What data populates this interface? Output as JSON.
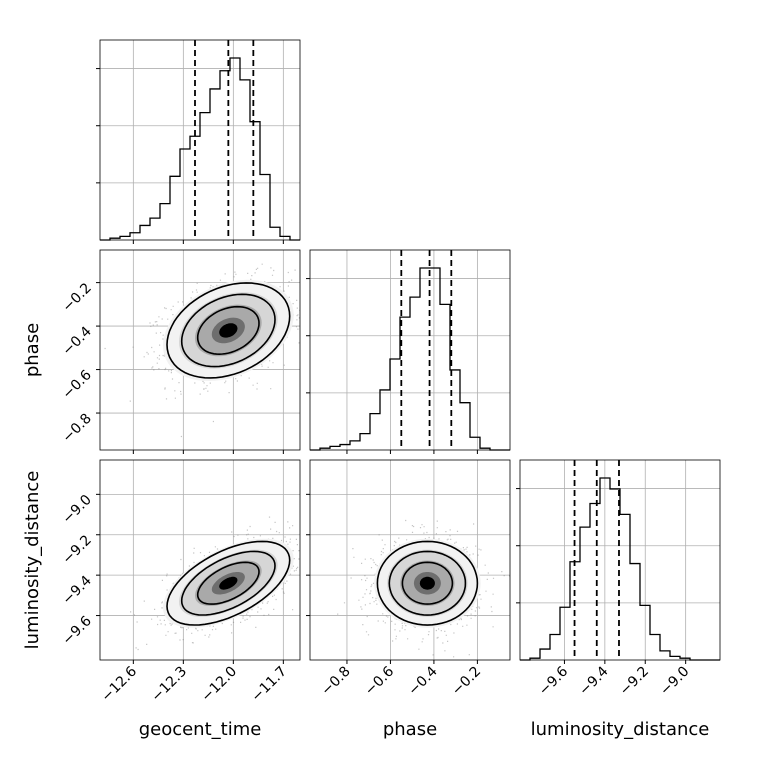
{
  "chart_data": {
    "type": "corner",
    "parameters": [
      "geocent_time",
      "phase",
      "luminosity_distance"
    ],
    "grid": true,
    "ranges": {
      "geocent_time": [
        -12.8,
        -11.6
      ],
      "phase": [
        -0.97,
        -0.05
      ],
      "luminosity_distance": [
        -9.82,
        -8.83
      ]
    },
    "ticks": {
      "geocent_time": {
        "values": [
          -12.6,
          -12.3,
          -12.0,
          -11.7
        ],
        "labels": [
          "−12.6",
          "−12.3",
          "−12.0",
          "−11.7"
        ]
      },
      "phase": {
        "values": [
          -0.8,
          -0.6,
          -0.4,
          -0.2
        ],
        "labels": [
          "−0.8",
          "−0.6",
          "−0.4",
          "−0.2"
        ]
      },
      "luminosity_distance": {
        "values": [
          -9.6,
          -9.4,
          -9.2,
          -9.0
        ],
        "labels": [
          "−9.6",
          "−9.4",
          "−9.2",
          "−9.0"
        ]
      }
    },
    "quantiles": {
      "geocent_time": [
        -12.23,
        -12.03,
        -11.88
      ],
      "phase": [
        -0.55,
        -0.42,
        -0.32
      ],
      "luminosity_distance": [
        -9.55,
        -9.44,
        -9.33
      ]
    },
    "histograms": {
      "geocent_time": {
        "x0": -12.8,
        "x1": -11.6,
        "heights": [
          0.0,
          0.01,
          0.02,
          0.04,
          0.08,
          0.12,
          0.2,
          0.35,
          0.5,
          0.57,
          0.7,
          0.83,
          0.93,
          1.0,
          0.88,
          0.65,
          0.36,
          0.07,
          0.02,
          0.0
        ]
      },
      "phase": {
        "x0": -0.97,
        "x1": -0.05,
        "heights": [
          0.0,
          0.01,
          0.02,
          0.03,
          0.05,
          0.09,
          0.2,
          0.33,
          0.5,
          0.73,
          0.84,
          1.0,
          1.0,
          0.8,
          0.44,
          0.26,
          0.07,
          0.01,
          0.0,
          0.0
        ]
      },
      "luminosity_distance": {
        "x0": -9.82,
        "x1": -8.83,
        "heights": [
          0.0,
          0.01,
          0.06,
          0.14,
          0.29,
          0.54,
          0.73,
          0.86,
          1.0,
          0.94,
          0.8,
          0.53,
          0.3,
          0.14,
          0.05,
          0.02,
          0.01,
          0.0,
          0.0,
          0.0
        ]
      }
    },
    "densities": [
      {
        "x": "geocent_time",
        "y": "phase",
        "mean": [
          -12.03,
          -0.42
        ],
        "sigma": [
          0.16,
          0.095
        ],
        "rho": 0.3
      },
      {
        "x": "geocent_time",
        "y": "luminosity_distance",
        "mean": [
          -12.03,
          -9.44
        ],
        "sigma": [
          0.16,
          0.09
        ],
        "rho": 0.55
      },
      {
        "x": "phase",
        "y": "luminosity_distance",
        "mean": [
          -0.43,
          -9.44
        ],
        "sigma": [
          0.1,
          0.09
        ],
        "rho": 0.0
      }
    ]
  }
}
